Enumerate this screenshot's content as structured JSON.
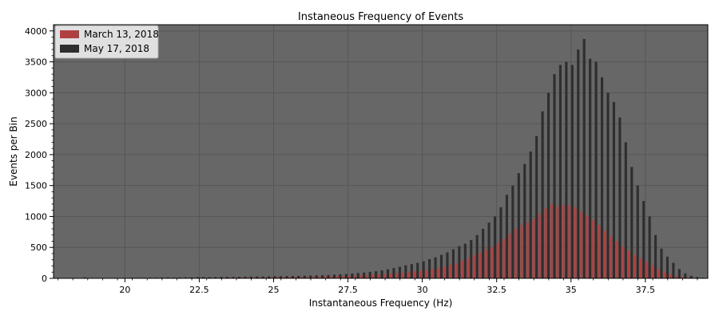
{
  "chart_data": {
    "type": "bar",
    "title": "Instaneous Frequency of Events",
    "xlabel": "Instantaneous Frequency (Hz)",
    "ylabel": "Events per Bin",
    "xlim": [
      17.6,
      39.6
    ],
    "ylim": [
      0,
      4100
    ],
    "xticks": [
      20,
      22.5,
      25,
      27.5,
      30,
      32.5,
      35,
      37.5
    ],
    "xtick_labels": [
      "20",
      "22.5",
      "25",
      "27.5",
      "30",
      "32.5",
      "35",
      "37.5"
    ],
    "yticks": [
      0,
      500,
      1000,
      1500,
      2000,
      2500,
      3000,
      3500,
      4000
    ],
    "ytick_labels": [
      "0",
      "500",
      "1000",
      "1500",
      "2000",
      "2500",
      "3000",
      "3500",
      "4000"
    ],
    "grid": true,
    "legend_position": "top-left",
    "background_color": "#676767",
    "x": [
      18.0,
      18.2,
      18.4,
      18.6,
      18.8,
      19.0,
      19.2,
      19.4,
      19.6,
      19.8,
      20.0,
      20.2,
      20.4,
      20.6,
      20.8,
      21.0,
      21.2,
      21.4,
      21.6,
      21.8,
      22.0,
      22.2,
      22.4,
      22.6,
      22.8,
      23.0,
      23.2,
      23.4,
      23.6,
      23.8,
      24.0,
      24.2,
      24.4,
      24.6,
      24.8,
      25.0,
      25.2,
      25.4,
      25.6,
      25.8,
      26.0,
      26.2,
      26.4,
      26.6,
      26.8,
      27.0,
      27.2,
      27.4,
      27.6,
      27.8,
      28.0,
      28.2,
      28.4,
      28.6,
      28.8,
      29.0,
      29.2,
      29.4,
      29.6,
      29.8,
      30.0,
      30.2,
      30.4,
      30.6,
      30.8,
      31.0,
      31.2,
      31.4,
      31.6,
      31.8,
      32.0,
      32.2,
      32.4,
      32.6,
      32.8,
      33.0,
      33.2,
      33.4,
      33.6,
      33.8,
      34.0,
      34.2,
      34.4,
      34.6,
      34.8,
      35.0,
      35.2,
      35.4,
      35.6,
      35.8,
      36.0,
      36.2,
      36.4,
      36.6,
      36.8,
      37.0,
      37.2,
      37.4,
      37.6,
      37.8,
      38.0,
      38.2,
      38.4,
      38.6,
      38.8,
      39.0,
      39.2,
      39.4
    ],
    "series": [
      {
        "name": "March 13, 2018",
        "color": "#b04040",
        "values": [
          0,
          0,
          0,
          0,
          0,
          0,
          0,
          0,
          2,
          3,
          2,
          3,
          3,
          4,
          4,
          5,
          5,
          6,
          6,
          7,
          7,
          8,
          8,
          9,
          9,
          10,
          10,
          11,
          12,
          13,
          14,
          15,
          16,
          17,
          18,
          19,
          20,
          21,
          22,
          24,
          26,
          28,
          30,
          32,
          34,
          36,
          38,
          40,
          43,
          47,
          50,
          55,
          60,
          65,
          70,
          77,
          85,
          93,
          102,
          112,
          122,
          135,
          150,
          168,
          190,
          215,
          245,
          285,
          330,
          375,
          420,
          465,
          510,
          570,
          640,
          720,
          800,
          860,
          900,
          960,
          1040,
          1130,
          1200,
          1160,
          1190,
          1180,
          1150,
          1080,
          1020,
          940,
          860,
          770,
          680,
          600,
          520,
          450,
          380,
          320,
          260,
          200,
          150,
          100,
          70,
          45,
          25,
          15,
          5,
          2
        ]
      },
      {
        "name": "May 17, 2018",
        "color": "#2e2e2e",
        "values": [
          0,
          8,
          0,
          14,
          0,
          0,
          0,
          0,
          0,
          0,
          0,
          10,
          8,
          10,
          12,
          10,
          12,
          15,
          12,
          14,
          15,
          15,
          18,
          20,
          18,
          20,
          22,
          22,
          22,
          24,
          26,
          28,
          28,
          30,
          32,
          34,
          34,
          36,
          38,
          40,
          42,
          45,
          48,
          50,
          55,
          60,
          65,
          70,
          78,
          85,
          95,
          105,
          115,
          130,
          145,
          165,
          185,
          210,
          230,
          250,
          275,
          310,
          340,
          380,
          420,
          470,
          520,
          560,
          620,
          700,
          800,
          900,
          1000,
          1150,
          1350,
          1500,
          1700,
          1850,
          2050,
          2300,
          2700,
          3000,
          3300,
          3450,
          3500,
          3450,
          3700,
          3870,
          3550,
          3500,
          3250,
          3000,
          2850,
          2600,
          2200,
          1800,
          1500,
          1250,
          1000,
          700,
          480,
          350,
          250,
          150,
          80,
          40,
          20,
          10
        ]
      }
    ]
  }
}
